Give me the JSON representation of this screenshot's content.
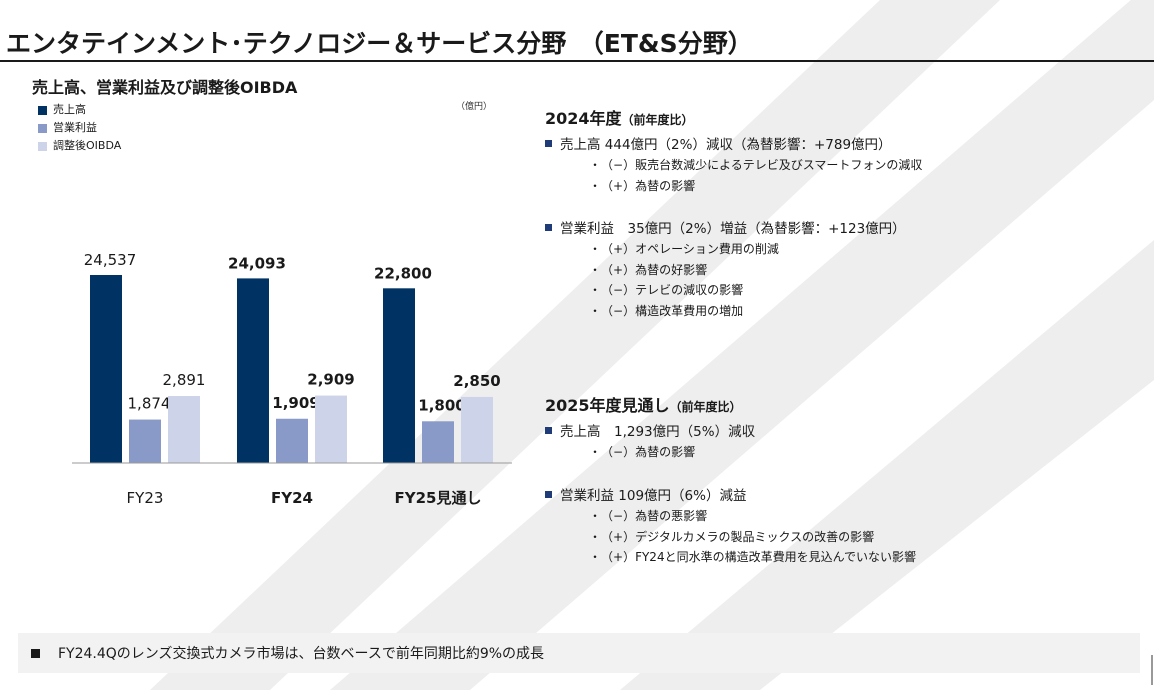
{
  "page": {
    "title": "エンタテインメント･テクノロジー＆サービス分野　（ET&S分野）",
    "chart_heading": "売上高、営業利益及び調整後OIBDA",
    "unit": "（億円）"
  },
  "colors": {
    "sales": "#003264",
    "operating_income": "#8a9ac8",
    "oibda": "#cdd3e8",
    "bullet": "#1f3c78",
    "watermark": "#eeeeee"
  },
  "chart_data": {
    "type": "bar",
    "categories": [
      "FY23",
      "FY24",
      "FY25見通し"
    ],
    "category_bold": [
      false,
      true,
      true
    ],
    "series": [
      {
        "name": "売上高",
        "values": [
          24537,
          24093,
          22800
        ],
        "labels": [
          "24,537",
          "24,093",
          "22,800"
        ]
      },
      {
        "name": "営業利益",
        "values": [
          1874,
          1909,
          1800
        ],
        "labels": [
          "1,874",
          "1,909",
          "1,800"
        ]
      },
      {
        "name": "調整後OIBDA",
        "values": [
          2891,
          2909,
          2850
        ],
        "labels": [
          "2,891",
          "2,909",
          "2,850"
        ]
      }
    ],
    "ylabel": "",
    "xlabel": "",
    "legend_position": "top-left",
    "grid": false
  },
  "fy2024": {
    "heading": "2024年度",
    "heading_sub": "（前年度比）",
    "sales_line": "売上高 444億円（2%）減収（為替影響：+789億円）",
    "sales_items": [
      "（−）販売台数減少によるテレビ及びスマートフォンの減収",
      "（+）為替の影響"
    ],
    "op_line": "営業利益　35億円（2%）増益（為替影響：+123億円）",
    "op_items": [
      "（+）オペレーション費用の削減",
      "（+）為替の好影響",
      "（−）テレビの減収の影響",
      "（−）構造改革費用の増加"
    ]
  },
  "fy2025": {
    "heading": "2025年度見通し",
    "heading_sub": "（前年度比）",
    "sales_line": "売上高　1,293億円（5%）減収",
    "sales_items": [
      "（−）為替の影響"
    ],
    "op_line": "営業利益 109億円（6%）減益",
    "op_items": [
      "（−）為替の悪影響",
      "（+）デジタルカメラの製品ミックスの改善の影響",
      "（+）FY24と同水準の構造改革費用を見込んでいない影響"
    ]
  },
  "footer": {
    "text": "FY24.4Qのレンズ交換式カメラ市場は、台数ベースで前年同期比約9%の成長"
  }
}
